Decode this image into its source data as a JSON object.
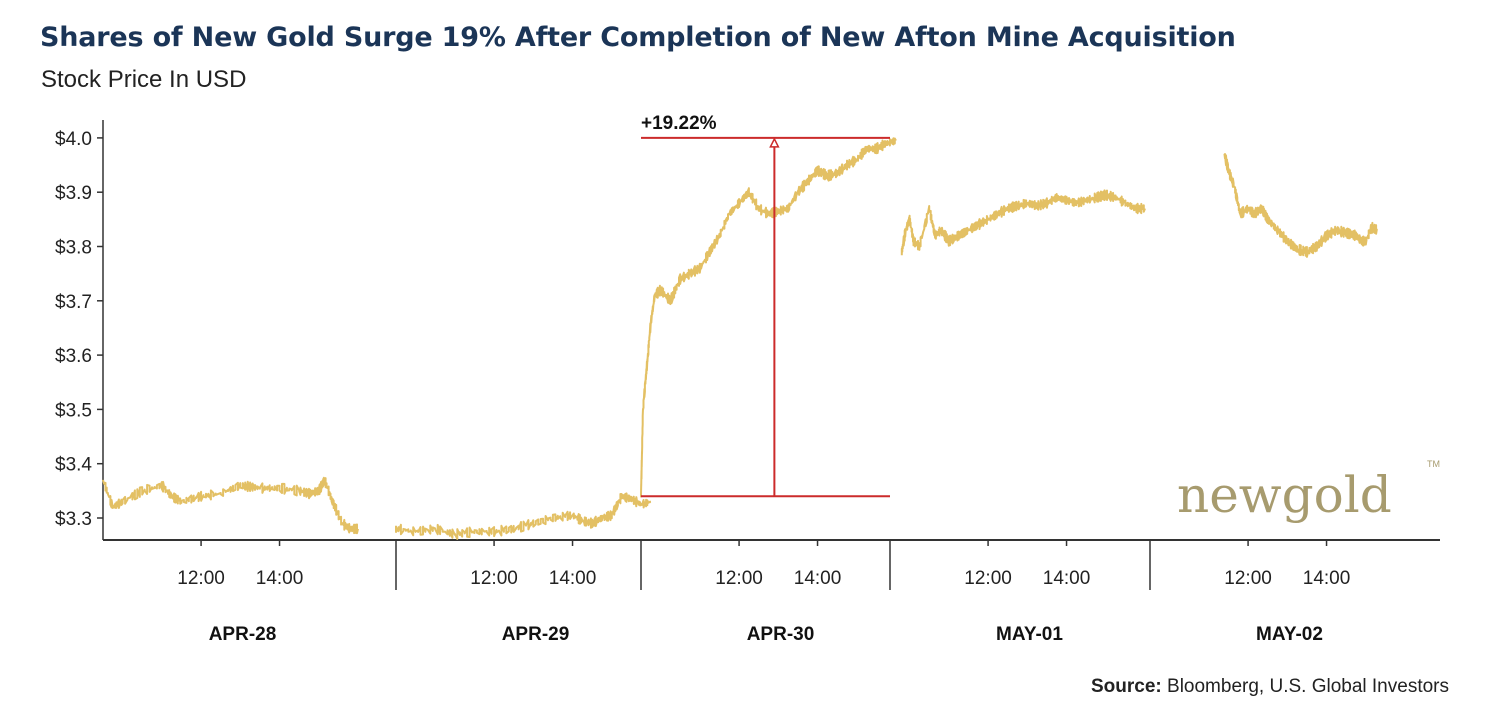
{
  "header": {
    "title": "Shares of New Gold Surge 19% After Completion of New Afton Mine Acquisition",
    "subtitle": "Stock Price In USD"
  },
  "footer": {
    "source_label": "Source:",
    "source_text": " Bloomberg, U.S. Global Investors"
  },
  "logo": {
    "text": "newgold",
    "tm": "TM",
    "color": "#a79b6e"
  },
  "colors": {
    "line": "#e3c064",
    "annotation": "#cc2b2b",
    "title": "#1b3557",
    "axis": "#333333"
  },
  "chart_data": {
    "type": "line",
    "ylim": [
      3.26,
      4.02
    ],
    "yticks": [
      3.3,
      3.4,
      3.5,
      3.6,
      3.7,
      3.8,
      3.9,
      4.0
    ],
    "ytick_labels": [
      "$3.3",
      "$3.4",
      "$3.5",
      "$3.6",
      "$3.7",
      "$3.8",
      "$3.9",
      "$4.0"
    ],
    "session": {
      "open_hour": 9.5,
      "close_hour": 16.0
    },
    "days": [
      {
        "label": "APR-28",
        "hour_ticks": [
          {
            "hour": 12,
            "label": "12:00"
          },
          {
            "hour": 14,
            "label": "14:00"
          }
        ],
        "points": [
          [
            9.5,
            3.37
          ],
          [
            9.75,
            3.32
          ],
          [
            10.0,
            3.33
          ],
          [
            10.5,
            3.35
          ],
          [
            11.0,
            3.36
          ],
          [
            11.25,
            3.34
          ],
          [
            11.5,
            3.33
          ],
          [
            12.0,
            3.34
          ],
          [
            12.5,
            3.345
          ],
          [
            13.0,
            3.36
          ],
          [
            13.5,
            3.355
          ],
          [
            14.0,
            3.355
          ],
          [
            14.5,
            3.35
          ],
          [
            14.75,
            3.345
          ],
          [
            15.0,
            3.35
          ],
          [
            15.15,
            3.37
          ],
          [
            15.35,
            3.33
          ],
          [
            15.6,
            3.29
          ],
          [
            15.8,
            3.28
          ],
          [
            16.0,
            3.28
          ]
        ]
      },
      {
        "label": "APR-29",
        "hour_ticks": [
          {
            "hour": 12,
            "label": "12:00"
          },
          {
            "hour": 14,
            "label": "14:00"
          }
        ],
        "points": [
          [
            9.5,
            3.28
          ],
          [
            10.0,
            3.275
          ],
          [
            10.5,
            3.28
          ],
          [
            11.0,
            3.27
          ],
          [
            11.5,
            3.275
          ],
          [
            12.0,
            3.275
          ],
          [
            12.5,
            3.28
          ],
          [
            13.0,
            3.29
          ],
          [
            13.5,
            3.3
          ],
          [
            14.0,
            3.305
          ],
          [
            14.25,
            3.295
          ],
          [
            14.5,
            3.29
          ],
          [
            14.75,
            3.3
          ],
          [
            15.0,
            3.305
          ],
          [
            15.25,
            3.34
          ],
          [
            15.5,
            3.335
          ],
          [
            15.75,
            3.325
          ],
          [
            16.0,
            3.33
          ]
        ]
      },
      {
        "label": "APR-30",
        "hour_ticks": [
          {
            "hour": 12,
            "label": "12:00"
          },
          {
            "hour": 14,
            "label": "14:00"
          }
        ],
        "points": [
          [
            9.5,
            3.34
          ],
          [
            9.55,
            3.5
          ],
          [
            9.65,
            3.58
          ],
          [
            9.75,
            3.66
          ],
          [
            9.85,
            3.71
          ],
          [
            10.0,
            3.72
          ],
          [
            10.25,
            3.7
          ],
          [
            10.5,
            3.74
          ],
          [
            10.75,
            3.75
          ],
          [
            11.0,
            3.76
          ],
          [
            11.25,
            3.79
          ],
          [
            11.5,
            3.82
          ],
          [
            11.75,
            3.86
          ],
          [
            12.0,
            3.88
          ],
          [
            12.25,
            3.9
          ],
          [
            12.5,
            3.87
          ],
          [
            12.75,
            3.86
          ],
          [
            13.0,
            3.865
          ],
          [
            13.25,
            3.87
          ],
          [
            13.5,
            3.9
          ],
          [
            13.75,
            3.92
          ],
          [
            14.0,
            3.94
          ],
          [
            14.25,
            3.93
          ],
          [
            14.5,
            3.935
          ],
          [
            14.75,
            3.95
          ],
          [
            15.0,
            3.96
          ],
          [
            15.25,
            3.98
          ],
          [
            15.5,
            3.98
          ],
          [
            15.75,
            3.99
          ],
          [
            16.0,
            3.995
          ]
        ]
      },
      {
        "label": "MAY-01",
        "hour_ticks": [
          {
            "hour": 12,
            "label": "12:00"
          },
          {
            "hour": 14,
            "label": "14:00"
          }
        ],
        "points": [
          [
            9.8,
            3.79
          ],
          [
            9.9,
            3.83
          ],
          [
            10.0,
            3.85
          ],
          [
            10.1,
            3.81
          ],
          [
            10.25,
            3.8
          ],
          [
            10.5,
            3.87
          ],
          [
            10.65,
            3.82
          ],
          [
            10.8,
            3.83
          ],
          [
            11.0,
            3.81
          ],
          [
            11.25,
            3.82
          ],
          [
            11.5,
            3.83
          ],
          [
            11.75,
            3.84
          ],
          [
            12.0,
            3.85
          ],
          [
            12.25,
            3.86
          ],
          [
            12.5,
            3.87
          ],
          [
            12.75,
            3.875
          ],
          [
            13.0,
            3.88
          ],
          [
            13.25,
            3.875
          ],
          [
            13.5,
            3.88
          ],
          [
            13.75,
            3.89
          ],
          [
            14.0,
            3.885
          ],
          [
            14.25,
            3.88
          ],
          [
            14.5,
            3.885
          ],
          [
            14.75,
            3.89
          ],
          [
            15.0,
            3.895
          ],
          [
            15.25,
            3.89
          ],
          [
            15.5,
            3.88
          ],
          [
            15.75,
            3.87
          ],
          [
            16.0,
            3.87
          ]
        ]
      },
      {
        "label": "MAY-02",
        "hour_ticks": [
          {
            "hour": 12,
            "label": "12:00"
          },
          {
            "hour": 14,
            "label": "14:00"
          }
        ],
        "points": [
          [
            11.4,
            3.97
          ],
          [
            11.5,
            3.94
          ],
          [
            11.65,
            3.91
          ],
          [
            11.8,
            3.86
          ],
          [
            12.0,
            3.87
          ],
          [
            12.15,
            3.86
          ],
          [
            12.35,
            3.87
          ],
          [
            12.5,
            3.85
          ],
          [
            12.75,
            3.83
          ],
          [
            13.0,
            3.81
          ],
          [
            13.25,
            3.795
          ],
          [
            13.5,
            3.79
          ],
          [
            13.75,
            3.8
          ],
          [
            14.0,
            3.82
          ],
          [
            14.25,
            3.83
          ],
          [
            14.5,
            3.825
          ],
          [
            14.75,
            3.82
          ],
          [
            14.9,
            3.81
          ],
          [
            15.0,
            3.81
          ],
          [
            15.15,
            3.835
          ],
          [
            15.3,
            3.83
          ]
        ]
      }
    ],
    "annotation": {
      "label": "+19.22%",
      "low": 3.34,
      "high": 4.0,
      "start_day": 2,
      "start_hour": 9.5,
      "arrow_hour": 12.9,
      "end_day": 3,
      "end_hour": 9.5
    }
  }
}
